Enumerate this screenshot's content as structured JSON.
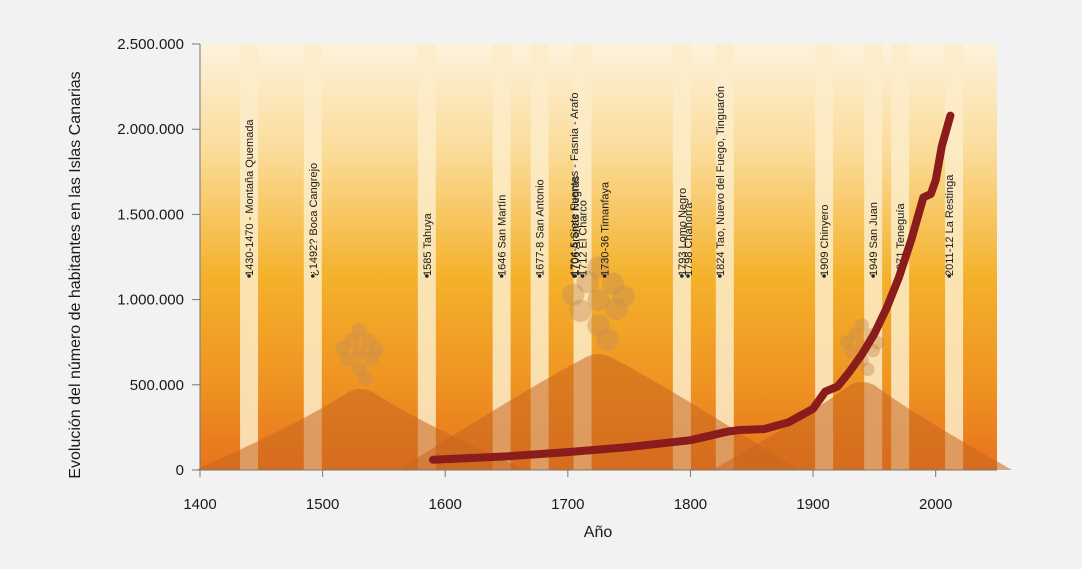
{
  "chart_data": {
    "type": "line",
    "title": "",
    "xlabel": "Año",
    "ylabel": "Evolución del número de habitantes en las Islas Canarias",
    "xlim": [
      1400,
      2050
    ],
    "ylim": [
      0,
      2500000
    ],
    "x_ticks": [
      1400,
      1500,
      1600,
      1700,
      1800,
      1900,
      2000
    ],
    "y_ticks": [
      0,
      500000,
      1000000,
      1500000,
      2000000,
      2500000
    ],
    "x_tick_labels": [
      "1400",
      "1500",
      "1600",
      "1700",
      "1800",
      "1900",
      "2000"
    ],
    "y_tick_labels": [
      "0",
      "500.000",
      "1.000.000",
      "1.500.000",
      "2.000.000",
      "2.500.000"
    ],
    "grid": false,
    "legend": "none",
    "colors": {
      "line": "#8b1c1c",
      "band": "#fbecc9",
      "bg_top": "#fcf0d8",
      "bg_mid": "#f3b12a",
      "bg_bottom": "#ea7a1e",
      "volcano": "#c8661f",
      "smoke": "#c88f55"
    },
    "series": [
      {
        "x": [
          1590,
          1650,
          1700,
          1750,
          1800,
          1830,
          1840,
          1860,
          1880,
          1900,
          1910,
          1920,
          1930,
          1940,
          1950,
          1960,
          1970,
          1980,
          1990,
          1996,
          2000,
          2005,
          2012
        ],
        "y": [
          60000,
          80000,
          105000,
          135000,
          175000,
          225000,
          235000,
          240000,
          280000,
          360000,
          460000,
          490000,
          580000,
          680000,
          800000,
          950000,
          1130000,
          1350000,
          1600000,
          1620000,
          1700000,
          1900000,
          2080000
        ]
      }
    ],
    "eruptions": [
      {
        "year": 1440,
        "label": "1430-1470 - Montaña Quemada"
      },
      {
        "year": 1492,
        "label": "¿1492?  Boca Cangrejo"
      },
      {
        "year": 1585,
        "label": "1585  Tahuya"
      },
      {
        "year": 1646,
        "label": "1646  San Martín"
      },
      {
        "year": 1677,
        "label": "1677-8  San Antonio"
      },
      {
        "year": 1705,
        "label": "1704-5  Siete Fuentes - Fasnia - Arafo"
      },
      {
        "year": 1706,
        "label": "1706  Arenas Negras"
      },
      {
        "year": 1712,
        "label": "1712  El Charco"
      },
      {
        "year": 1730,
        "label": "1730-36  Timanfaya"
      },
      {
        "year": 1793,
        "label": "1793  Lomo Negro"
      },
      {
        "year": 1798,
        "label": "1798  Chahorra"
      },
      {
        "year": 1824,
        "label": "1824  Tao, Nuevo del Fuego, Tinguarón"
      },
      {
        "year": 1909,
        "label": "1909  Chinyero"
      },
      {
        "year": 1949,
        "label": "1949  San Juan"
      },
      {
        "year": 1971,
        "label": "1971  Teneguía"
      },
      {
        "year": 2011,
        "label": "2011-12  La Restinga"
      }
    ]
  }
}
